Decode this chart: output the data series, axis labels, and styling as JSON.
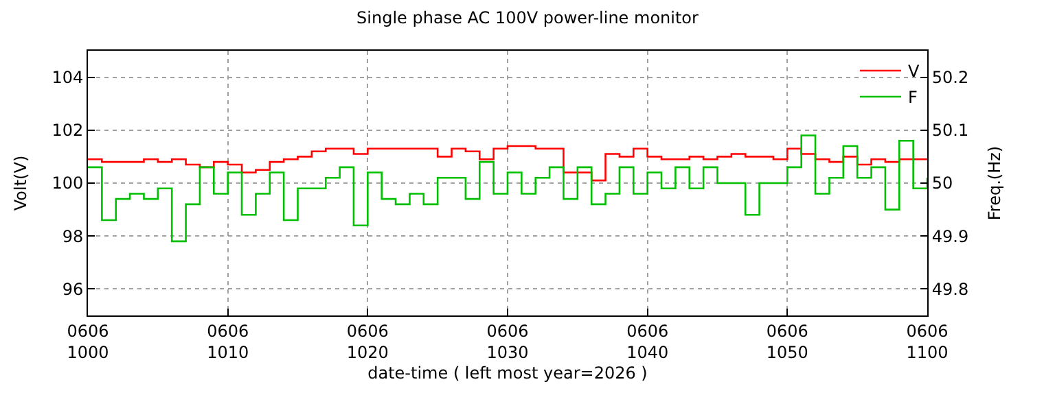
{
  "chart_data": {
    "type": "step",
    "title": "Single phase AC 100V power-line monitor",
    "xlabel": "date-time ( left most year=2026 )",
    "ylabel": "Volt(V)",
    "y2label": "Freq.(Hz)",
    "x": [
      "2026-06-06T10:00",
      "2026-06-06T10:01",
      "2026-06-06T10:02",
      "2026-06-06T10:03",
      "2026-06-06T10:04",
      "2026-06-06T10:05",
      "2026-06-06T10:06",
      "2026-06-06T10:07",
      "2026-06-06T10:08",
      "2026-06-06T10:09",
      "2026-06-06T10:10",
      "2026-06-06T10:11",
      "2026-06-06T10:12",
      "2026-06-06T10:13",
      "2026-06-06T10:14",
      "2026-06-06T10:15",
      "2026-06-06T10:16",
      "2026-06-06T10:17",
      "2026-06-06T10:18",
      "2026-06-06T10:19",
      "2026-06-06T10:20",
      "2026-06-06T10:21",
      "2026-06-06T10:22",
      "2026-06-06T10:23",
      "2026-06-06T10:24",
      "2026-06-06T10:25",
      "2026-06-06T10:26",
      "2026-06-06T10:27",
      "2026-06-06T10:28",
      "2026-06-06T10:29",
      "2026-06-06T10:30",
      "2026-06-06T10:31",
      "2026-06-06T10:32",
      "2026-06-06T10:33",
      "2026-06-06T10:34",
      "2026-06-06T10:35",
      "2026-06-06T10:36",
      "2026-06-06T10:37",
      "2026-06-06T10:38",
      "2026-06-06T10:39",
      "2026-06-06T10:40",
      "2026-06-06T10:41",
      "2026-06-06T10:42",
      "2026-06-06T10:43",
      "2026-06-06T10:44",
      "2026-06-06T10:45",
      "2026-06-06T10:46",
      "2026-06-06T10:47",
      "2026-06-06T10:48",
      "2026-06-06T10:49",
      "2026-06-06T10:50",
      "2026-06-06T10:51",
      "2026-06-06T10:52",
      "2026-06-06T10:53",
      "2026-06-06T10:54",
      "2026-06-06T10:55",
      "2026-06-06T10:56",
      "2026-06-06T10:57",
      "2026-06-06T10:58",
      "2026-06-06T10:59",
      "2026-06-06T11:00"
    ],
    "series": [
      {
        "name": "V",
        "color": "#ff0000",
        "values": [
          100.9,
          100.8,
          100.8,
          100.8,
          100.9,
          100.8,
          100.9,
          100.7,
          100.6,
          100.8,
          100.7,
          100.4,
          100.5,
          100.8,
          100.9,
          101.0,
          101.2,
          101.3,
          101.3,
          101.1,
          101.3,
          101.3,
          101.3,
          101.3,
          101.3,
          101.0,
          101.3,
          101.2,
          100.9,
          101.3,
          101.4,
          101.4,
          101.3,
          101.3,
          100.4,
          100.4,
          100.1,
          101.1,
          101.0,
          101.3,
          101.0,
          100.9,
          100.9,
          101.0,
          100.9,
          101.0,
          101.1,
          101.0,
          101.0,
          100.9,
          101.3,
          101.1,
          100.9,
          100.8,
          101.0,
          100.7,
          100.9,
          100.8,
          100.9,
          100.9,
          100.9
        ]
      },
      {
        "name": "F",
        "color": "#00c000",
        "axis": "y2",
        "values": [
          50.03,
          49.93,
          49.97,
          49.98,
          49.97,
          49.99,
          49.89,
          49.96,
          50.03,
          49.98,
          50.02,
          49.94,
          49.98,
          50.02,
          49.93,
          49.99,
          49.99,
          50.01,
          50.03,
          49.92,
          50.02,
          49.97,
          49.96,
          49.98,
          49.96,
          50.01,
          50.01,
          49.97,
          50.04,
          49.98,
          50.02,
          49.98,
          50.01,
          50.03,
          49.97,
          50.03,
          49.96,
          49.98,
          50.03,
          49.98,
          50.02,
          49.99,
          50.03,
          49.99,
          50.03,
          50.0,
          50.0,
          49.94,
          50.0,
          50.0,
          50.03,
          50.09,
          49.98,
          50.01,
          50.07,
          50.01,
          50.03,
          49.95,
          50.08,
          49.99,
          50.01
        ]
      }
    ],
    "xlim": [
      "2026-06-06T10:00",
      "2026-06-06T11:00"
    ],
    "xticks": [
      {
        "value": "2026-06-06T10:00",
        "label": "0606\n1000"
      },
      {
        "value": "2026-06-06T10:10",
        "label": "0606\n1010"
      },
      {
        "value": "2026-06-06T10:20",
        "label": "0606\n1020"
      },
      {
        "value": "2026-06-06T10:30",
        "label": "0606\n1030"
      },
      {
        "value": "2026-06-06T10:40",
        "label": "0606\n1040"
      },
      {
        "value": "2026-06-06T10:50",
        "label": "0606\n1050"
      },
      {
        "value": "2026-06-06T11:00",
        "label": "0606\n1100"
      }
    ],
    "ylim": [
      95,
      105
    ],
    "yticks": [
      96,
      98,
      100,
      102,
      104
    ],
    "y2lim": [
      49.75,
      50.25
    ],
    "y2ticks": [
      49.8,
      49.9,
      {
        "value": 50,
        "label": "50"
      },
      50.1,
      50.2
    ],
    "grid": true,
    "legend": "top right"
  }
}
